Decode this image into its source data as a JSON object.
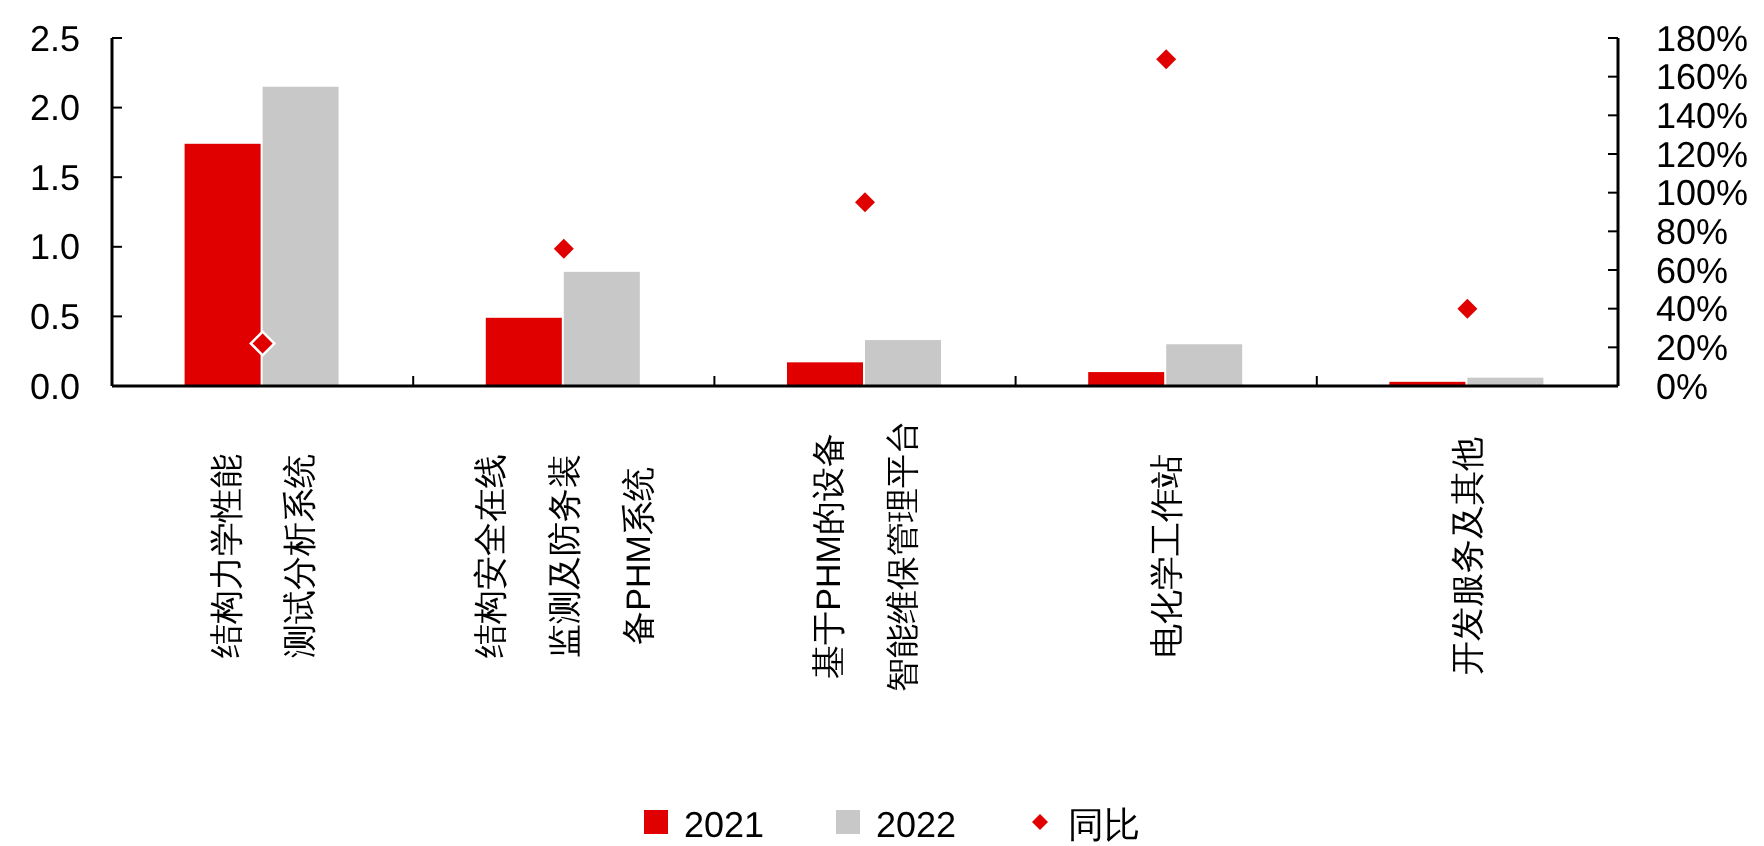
{
  "chart_data": {
    "type": "bar",
    "categories": [
      "结构力学性能测试分析系统",
      "结构安全在线监测及防务装备PHM系统",
      "基于PHM的设备智能维保管理平台",
      "电化学工作站",
      "开发服务及其他"
    ],
    "series": [
      {
        "name": "2021",
        "color": "#e00000",
        "values": [
          1.74,
          0.49,
          0.17,
          0.1,
          0.03
        ]
      },
      {
        "name": "2022",
        "color": "#c8c8c8",
        "values": [
          2.15,
          0.82,
          0.33,
          0.3,
          0.06
        ]
      },
      {
        "name": "同比",
        "type": "scatter",
        "axis": "y2",
        "color": "#e00000",
        "marker": "diamond",
        "values": [
          22,
          71,
          95,
          169,
          40
        ]
      }
    ],
    "ylim": [
      0,
      2.5
    ],
    "yticks": [
      {
        "value": 0,
        "label": "0.0"
      },
      0.5,
      {
        "value": 1,
        "label": "1.0"
      },
      1.5,
      {
        "value": 2,
        "label": "2.0"
      },
      2.5
    ],
    "y2lim": [
      0,
      180
    ],
    "y2ticks": [
      {
        "value": 0,
        "label": "0%"
      },
      {
        "value": 20,
        "label": "20%"
      },
      {
        "value": 40,
        "label": "40%"
      },
      {
        "value": 60,
        "label": "60%"
      },
      {
        "value": 80,
        "label": "80%"
      },
      {
        "value": 100,
        "label": "100%"
      },
      {
        "value": 120,
        "label": "120%"
      },
      {
        "value": 140,
        "label": "140%"
      },
      {
        "value": 160,
        "label": "160%"
      },
      {
        "value": 180,
        "label": "180%"
      }
    ],
    "legend": "bottom"
  }
}
